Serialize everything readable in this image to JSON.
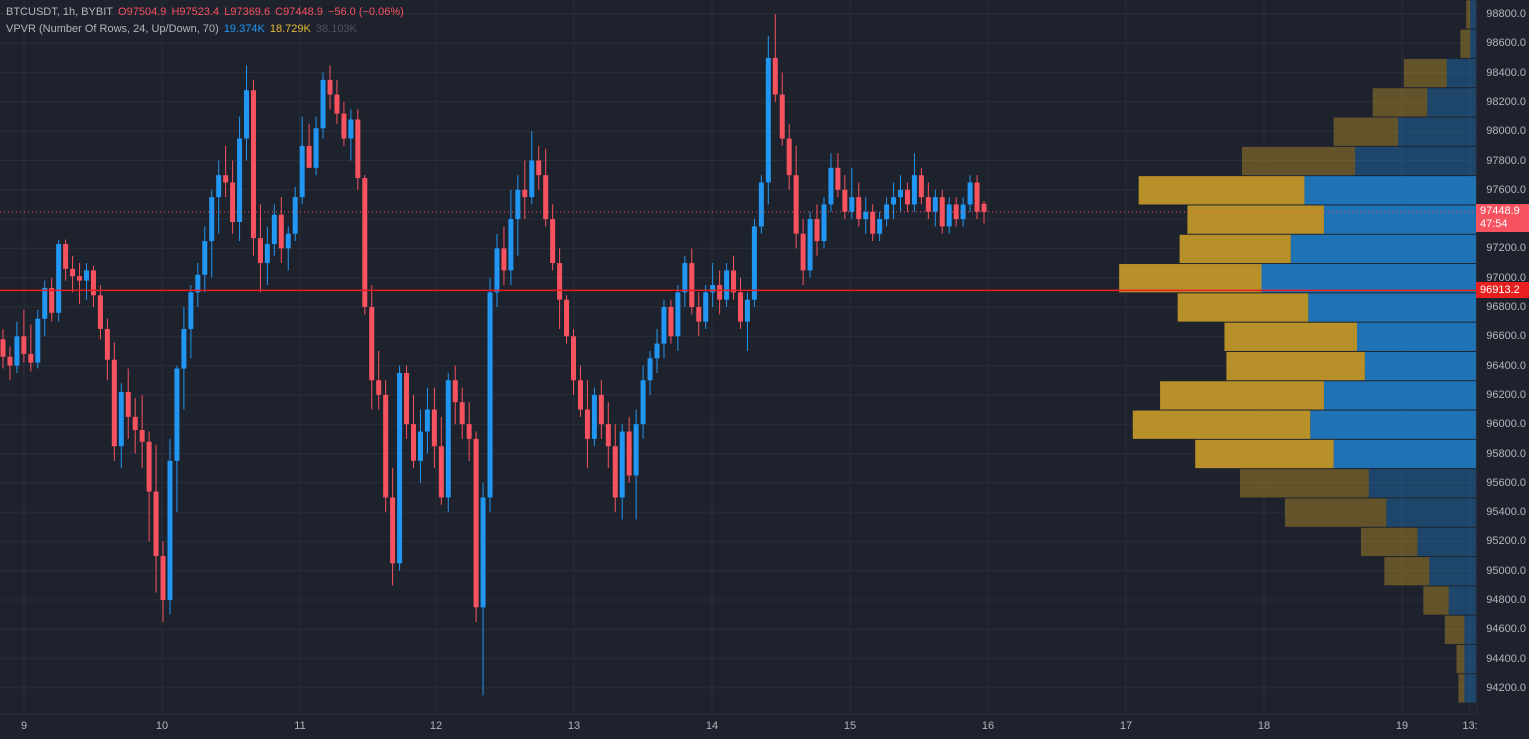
{
  "legend": {
    "symbol": "BTCUSDT, 1h, BYBIT",
    "open": "O97504.9",
    "high": "H97523.4",
    "low": "L97369.6",
    "close": "C97448.9",
    "change": "−56.0 (−0.06%)",
    "indicator": "VPVR (Number Of Rows, 24, Up/Down, 70)",
    "vol_up": "19.374K",
    "vol_down": "18.729K",
    "vol_total": "38.103K"
  },
  "last_price": {
    "value": "97448.9",
    "countdown": "47:54"
  },
  "crosshair_price": "96913.2",
  "price_ticks": [
    "98800.0",
    "98600.0",
    "98400.0",
    "98200.0",
    "98000.0",
    "97800.0",
    "97600.0",
    "97400.0",
    "97200.0",
    "97000.0",
    "96800.0",
    "96600.0",
    "96400.0",
    "96200.0",
    "96000.0",
    "95800.0",
    "95600.0",
    "95400.0",
    "95200.0",
    "95000.0",
    "94800.0",
    "94600.0",
    "94400.0",
    "94200.0"
  ],
  "time_ticks": [
    "9",
    "10",
    "11",
    "12",
    "13",
    "14",
    "15",
    "16",
    "17",
    "18",
    "19",
    "13:"
  ],
  "colors": {
    "up": "#2196f3",
    "down": "#f7525f",
    "bg": "#1e222d",
    "grid": "#2a2e39",
    "vp_up": "#1f73b5",
    "vp_down": "#b8902a"
  },
  "chart_data": {
    "type": "candlestick",
    "title": "BTCUSDT, 1h, BYBIT",
    "ylim": [
      94050,
      98850
    ],
    "candles": [
      [
        96580,
        96650,
        96380,
        96460
      ],
      [
        96460,
        96530,
        96300,
        96400
      ],
      [
        96400,
        96700,
        96350,
        96600
      ],
      [
        96600,
        96780,
        96420,
        96480
      ],
      [
        96480,
        96680,
        96360,
        96420
      ],
      [
        96420,
        96780,
        96380,
        96720
      ],
      [
        96720,
        96980,
        96600,
        96930
      ],
      [
        96930,
        97000,
        96700,
        96760
      ],
      [
        96760,
        97260,
        96700,
        97230
      ],
      [
        97230,
        97260,
        96980,
        97060
      ],
      [
        97060,
        97150,
        96900,
        97010
      ],
      [
        97010,
        97100,
        96820,
        96980
      ],
      [
        96980,
        97100,
        96850,
        97050
      ],
      [
        97050,
        97080,
        96800,
        96880
      ],
      [
        96880,
        96950,
        96580,
        96650
      ],
      [
        96650,
        96720,
        96300,
        96440
      ],
      [
        96440,
        96560,
        95750,
        95850
      ],
      [
        95850,
        96280,
        95700,
        96220
      ],
      [
        96220,
        96380,
        95900,
        96050
      ],
      [
        96050,
        96180,
        95800,
        95960
      ],
      [
        95960,
        96200,
        95700,
        95880
      ],
      [
        95880,
        95950,
        95200,
        95540
      ],
      [
        95540,
        95860,
        94850,
        95100
      ],
      [
        95100,
        95200,
        94650,
        94800
      ],
      [
        94800,
        95900,
        94700,
        95750
      ],
      [
        95750,
        96400,
        95400,
        96380
      ],
      [
        96380,
        96800,
        96100,
        96650
      ],
      [
        96650,
        96950,
        96450,
        96900
      ],
      [
        96900,
        97100,
        96800,
        97020
      ],
      [
        97020,
        97350,
        96900,
        97250
      ],
      [
        97250,
        97600,
        97000,
        97550
      ],
      [
        97550,
        97800,
        97300,
        97700
      ],
      [
        97700,
        97900,
        97550,
        97650
      ],
      [
        97650,
        97800,
        97300,
        97380
      ],
      [
        97380,
        98100,
        97250,
        97950
      ],
      [
        97950,
        98450,
        97800,
        98280
      ],
      [
        98280,
        98350,
        97150,
        97270
      ],
      [
        97270,
        97500,
        96900,
        97100
      ],
      [
        97100,
        97350,
        96950,
        97230
      ],
      [
        97230,
        97500,
        97150,
        97430
      ],
      [
        97430,
        97550,
        97100,
        97200
      ],
      [
        97200,
        97350,
        97050,
        97300
      ],
      [
        97300,
        97620,
        97250,
        97550
      ],
      [
        97550,
        98100,
        97500,
        97900
      ],
      [
        97900,
        98050,
        97750,
        97750
      ],
      [
        97750,
        98100,
        97700,
        98020
      ],
      [
        98020,
        98400,
        97950,
        98350
      ],
      [
        98350,
        98450,
        98150,
        98250
      ],
      [
        98250,
        98350,
        98050,
        98120
      ],
      [
        98120,
        98200,
        97900,
        97950
      ],
      [
        97950,
        98150,
        97800,
        98080
      ],
      [
        98080,
        98150,
        97600,
        97680
      ],
      [
        97680,
        97700,
        96750,
        96800
      ],
      [
        96800,
        96950,
        96100,
        96300
      ],
      [
        96300,
        96500,
        96100,
        96200
      ],
      [
        96200,
        96300,
        95400,
        95500
      ],
      [
        95500,
        95700,
        94900,
        95050
      ],
      [
        95050,
        96400,
        95000,
        96350
      ],
      [
        96350,
        96400,
        95900,
        96000
      ],
      [
        96000,
        96200,
        95700,
        95750
      ],
      [
        95750,
        96100,
        95600,
        95950
      ],
      [
        95950,
        96250,
        95800,
        96100
      ],
      [
        96100,
        96250,
        95700,
        95850
      ],
      [
        95850,
        96050,
        95450,
        95500
      ],
      [
        95500,
        96350,
        95400,
        96300
      ],
      [
        96300,
        96400,
        96000,
        96150
      ],
      [
        96150,
        96250,
        95900,
        96000
      ],
      [
        96000,
        96150,
        95750,
        95900
      ],
      [
        95900,
        95950,
        94650,
        94750
      ],
      [
        94750,
        95600,
        94150,
        95500
      ],
      [
        95500,
        97000,
        95400,
        96900
      ],
      [
        96900,
        97300,
        96800,
        97200
      ],
      [
        97200,
        97350,
        96950,
        97050
      ],
      [
        97050,
        97600,
        96950,
        97400
      ],
      [
        97400,
        97700,
        97150,
        97600
      ],
      [
        97600,
        97800,
        97400,
        97550
      ],
      [
        97550,
        98000,
        97500,
        97800
      ],
      [
        97800,
        97900,
        97600,
        97700
      ],
      [
        97700,
        97880,
        97350,
        97400
      ],
      [
        97400,
        97500,
        97050,
        97100
      ],
      [
        97100,
        97200,
        96650,
        96850
      ],
      [
        96850,
        96880,
        96550,
        96600
      ],
      [
        96600,
        96650,
        96200,
        96300
      ],
      [
        96300,
        96400,
        96050,
        96100
      ],
      [
        96100,
        96300,
        95700,
        95900
      ],
      [
        95900,
        96250,
        95850,
        96200
      ],
      [
        96200,
        96300,
        95900,
        96000
      ],
      [
        96000,
        96150,
        95700,
        95850
      ],
      [
        95850,
        96000,
        95400,
        95500
      ],
      [
        95500,
        96000,
        95350,
        95950
      ],
      [
        95950,
        96050,
        95600,
        95650
      ],
      [
        95650,
        96100,
        95350,
        96000
      ],
      [
        96000,
        96400,
        95900,
        96300
      ],
      [
        96300,
        96500,
        96200,
        96450
      ],
      [
        96450,
        96650,
        96350,
        96550
      ],
      [
        96550,
        96850,
        96450,
        96800
      ],
      [
        96800,
        96850,
        96550,
        96600
      ],
      [
        96600,
        96950,
        96500,
        96900
      ],
      [
        96900,
        97150,
        96800,
        97100
      ],
      [
        97100,
        97200,
        96750,
        96800
      ],
      [
        96800,
        96900,
        96600,
        96700
      ],
      [
        96700,
        96950,
        96650,
        96900
      ],
      [
        96900,
        97100,
        96800,
        96950
      ],
      [
        96950,
        97050,
        96750,
        96850
      ],
      [
        96850,
        97100,
        96800,
        97050
      ],
      [
        97050,
        97150,
        96850,
        96900
      ],
      [
        96900,
        97000,
        96650,
        96700
      ],
      [
        96700,
        96900,
        96500,
        96850
      ],
      [
        96850,
        97400,
        96800,
        97350
      ],
      [
        97350,
        97700,
        97300,
        97650
      ],
      [
        97650,
        98650,
        97500,
        98500
      ],
      [
        98500,
        98800,
        98200,
        98250
      ],
      [
        98250,
        98400,
        97900,
        97950
      ],
      [
        97950,
        98050,
        97600,
        97700
      ],
      [
        97700,
        97900,
        97200,
        97300
      ],
      [
        97300,
        97400,
        96950,
        97050
      ],
      [
        97050,
        97450,
        97000,
        97400
      ],
      [
        97400,
        97500,
        97150,
        97250
      ],
      [
        97250,
        97550,
        97200,
        97500
      ],
      [
        97500,
        97850,
        97450,
        97750
      ],
      [
        97750,
        97850,
        97550,
        97600
      ],
      [
        97600,
        97700,
        97400,
        97450
      ],
      [
        97450,
        97750,
        97400,
        97550
      ],
      [
        97550,
        97650,
        97350,
        97400
      ],
      [
        97400,
        97550,
        97300,
        97450
      ],
      [
        97450,
        97500,
        97250,
        97300
      ],
      [
        97300,
        97450,
        97250,
        97400
      ],
      [
        97400,
        97550,
        97350,
        97500
      ],
      [
        97500,
        97650,
        97400,
        97550
      ],
      [
        97550,
        97700,
        97450,
        97600
      ],
      [
        97600,
        97650,
        97450,
        97500
      ],
      [
        97500,
        97850,
        97450,
        97700
      ],
      [
        97700,
        97750,
        97500,
        97550
      ],
      [
        97550,
        97650,
        97400,
        97450
      ],
      [
        97450,
        97600,
        97350,
        97550
      ],
      [
        97550,
        97600,
        97300,
        97350
      ],
      [
        97350,
        97550,
        97300,
        97500
      ],
      [
        97500,
        97550,
        97350,
        97400
      ],
      [
        97400,
        97550,
        97350,
        97500
      ],
      [
        97500,
        97700,
        97450,
        97650
      ],
      [
        97650,
        97700,
        97400,
        97450
      ],
      [
        97504.9,
        97523.4,
        97369.6,
        97448.9
      ]
    ],
    "volume_profile": [
      {
        "price": 98800,
        "up": 0.03,
        "down": 0.02
      },
      {
        "price": 98600,
        "up": 0.03,
        "down": 0.05
      },
      {
        "price": 98400,
        "up": 0.15,
        "down": 0.22
      },
      {
        "price": 98200,
        "up": 0.25,
        "down": 0.28
      },
      {
        "price": 98000,
        "up": 0.4,
        "down": 0.33
      },
      {
        "price": 97800,
        "up": 0.62,
        "down": 0.58
      },
      {
        "price": 97600,
        "up": 0.88,
        "down": 0.85
      },
      {
        "price": 97400,
        "up": 0.78,
        "down": 0.7
      },
      {
        "price": 97200,
        "up": 0.95,
        "down": 0.57
      },
      {
        "price": 97000,
        "up": 1.1,
        "down": 0.73
      },
      {
        "price": 96800,
        "up": 0.86,
        "down": 0.67
      },
      {
        "price": 96600,
        "up": 0.61,
        "down": 0.68
      },
      {
        "price": 96400,
        "up": 0.57,
        "down": 0.71
      },
      {
        "price": 96200,
        "up": 0.78,
        "down": 0.84
      },
      {
        "price": 96000,
        "up": 0.85,
        "down": 0.91
      },
      {
        "price": 95800,
        "up": 0.73,
        "down": 0.71
      },
      {
        "price": 95600,
        "up": 0.55,
        "down": 0.66
      },
      {
        "price": 95400,
        "up": 0.46,
        "down": 0.52
      },
      {
        "price": 95200,
        "up": 0.3,
        "down": 0.29
      },
      {
        "price": 95000,
        "up": 0.24,
        "down": 0.23
      },
      {
        "price": 94800,
        "up": 0.14,
        "down": 0.13
      },
      {
        "price": 94600,
        "up": 0.06,
        "down": 0.1
      },
      {
        "price": 94400,
        "up": 0.06,
        "down": 0.04
      },
      {
        "price": 94200,
        "up": 0.06,
        "down": 0.03
      }
    ]
  }
}
